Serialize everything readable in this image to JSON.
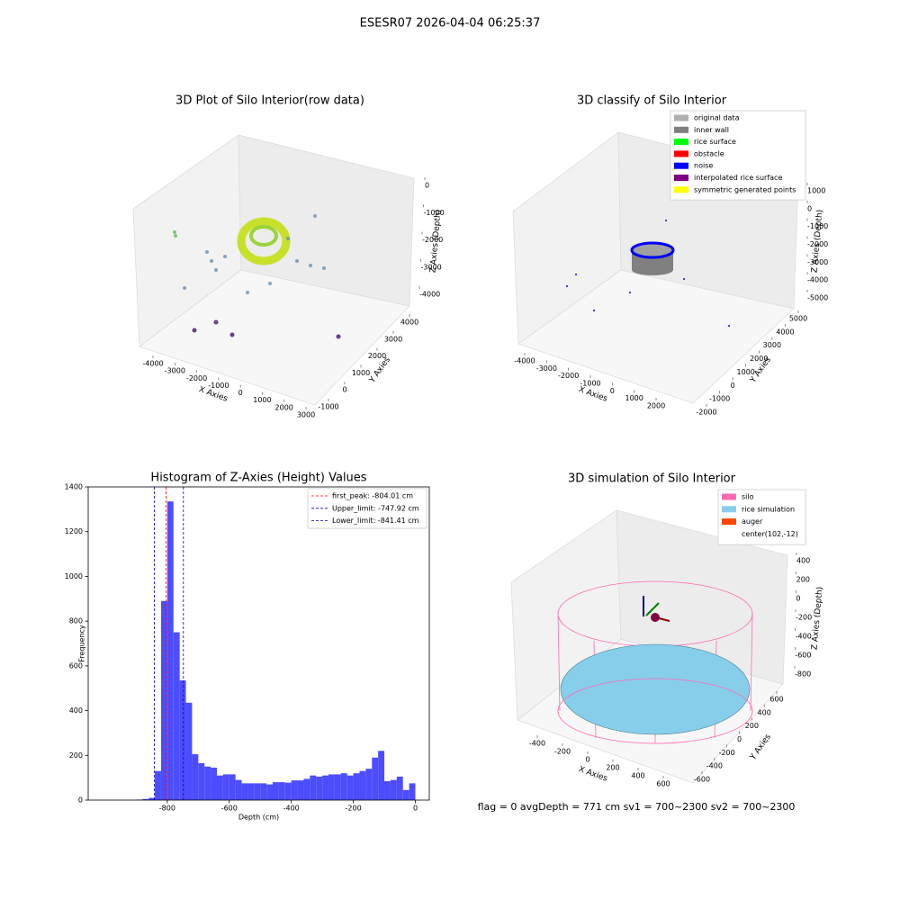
{
  "title": "ESESR07 2026-04-04 06:25:37",
  "footer": "flag = 0     avgDepth = 771 cm  sv1 = 700~2300  sv2 = 700~2300",
  "chart_data": [
    {
      "type": "scatter3d",
      "title": "3D Plot of Silo Interior(row data)",
      "xlabel": "X Axies",
      "ylabel": "Y Axies",
      "zlabel": "Z Axies (Depth)",
      "xticks": [
        -4000,
        -3000,
        -2000,
        -1000,
        0,
        1000,
        2000,
        3000
      ],
      "yticks": [
        -1000,
        0,
        1000,
        2000,
        3000,
        4000
      ],
      "zticks": [
        0,
        -1000,
        -2000,
        -3000,
        -4000
      ]
    },
    {
      "type": "scatter3d",
      "title": "3D classify of Silo Interior",
      "xlabel": "X Axies",
      "ylabel": "Y Axies",
      "zlabel": "Z Axies (Depth)",
      "xticks": [
        -4000,
        -3000,
        -2000,
        -1000,
        0,
        1000,
        2000
      ],
      "yticks": [
        -2000,
        -1000,
        0,
        1000,
        2000,
        3000,
        4000,
        5000
      ],
      "zticks": [
        1000,
        0,
        -1000,
        -2000,
        -3000,
        -4000,
        -5000
      ],
      "legend": [
        {
          "name": "original data",
          "color": "#b0b0b0"
        },
        {
          "name": "inner wall",
          "color": "#808080"
        },
        {
          "name": "rice surface",
          "color": "#00ff00"
        },
        {
          "name": "obstacle",
          "color": "#ff0000"
        },
        {
          "name": "noise",
          "color": "#0000ff"
        },
        {
          "name": "interpolated rice surface",
          "color": "#800080"
        },
        {
          "name": "symmetric generated points",
          "color": "#ffff00"
        }
      ]
    },
    {
      "type": "histogram",
      "title": "Histogram of Z-Axies (Height) Values",
      "xlabel": "Depth (cm)",
      "ylabel": "Frequency",
      "color": "#4d4dff",
      "bins": [
        -1000,
        -980,
        -960,
        -940,
        -920,
        -900,
        -880,
        -860,
        -840,
        -820,
        -800,
        -780,
        -760,
        -740,
        -720,
        -700,
        -680,
        -660,
        -640,
        -620,
        -600,
        -580,
        -560,
        -540,
        -520,
        -500,
        -480,
        -460,
        -440,
        -420,
        -400,
        -380,
        -360,
        -340,
        -320,
        -300,
        -280,
        -260,
        -240,
        -220,
        -200,
        -180,
        -160,
        -140,
        -120,
        -100,
        -80,
        -60,
        -40,
        -20,
        0
      ],
      "counts": [
        0,
        0,
        0,
        0,
        0,
        2,
        5,
        10,
        130,
        890,
        1335,
        750,
        535,
        435,
        205,
        165,
        150,
        145,
        110,
        115,
        115,
        90,
        75,
        75,
        75,
        75,
        70,
        80,
        80,
        78,
        88,
        88,
        95,
        110,
        105,
        110,
        115,
        115,
        120,
        110,
        120,
        130,
        140,
        190,
        220,
        85,
        90,
        105,
        45,
        75
      ],
      "xlim": [
        -1055,
        45
      ],
      "ylim": [
        0,
        1400
      ],
      "xticks": [
        -800,
        -600,
        -400,
        -200,
        0
      ],
      "yticks": [
        0,
        200,
        400,
        600,
        800,
        1000,
        1200,
        1400
      ],
      "lines": [
        {
          "name": "first_peak: -804.01 cm",
          "value": -804.01,
          "color": "#ff0000"
        },
        {
          "name": "Upper_limit: -747.92 cm",
          "value": -747.92,
          "color": "#0000cc"
        },
        {
          "name": "Lower_limit: -841.41 cm",
          "value": -841.41,
          "color": "#0000cc"
        }
      ]
    },
    {
      "type": "scatter3d",
      "title": "3D simulation of Silo Interior",
      "xlabel": "X Axies",
      "ylabel": "Y Axies",
      "zlabel": "Z Axies (Depth)",
      "xticks": [
        -400,
        -200,
        0,
        200,
        400,
        600
      ],
      "yticks": [
        -600,
        -400,
        -200,
        0,
        200,
        400,
        600
      ],
      "zticks": [
        400,
        200,
        0,
        -200,
        -400,
        -600,
        -800
      ],
      "legend": [
        {
          "name": "silo",
          "color": "#ff69b4"
        },
        {
          "name": "rice simulation",
          "color": "#87ceeb"
        },
        {
          "name": "auger",
          "color": "#ff4500"
        },
        {
          "name": "center(102,-12)"
        }
      ]
    }
  ]
}
